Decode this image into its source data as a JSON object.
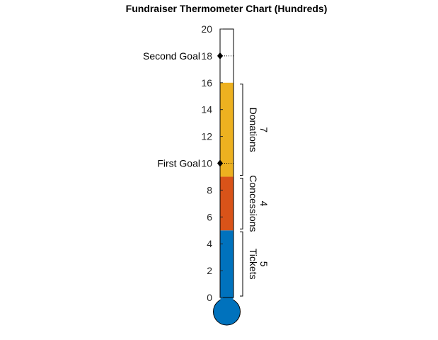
{
  "chart_data": {
    "type": "bar",
    "title": "Fundraiser Thermometer Chart (Hundreds)",
    "ylim": [
      0,
      20
    ],
    "yticks": [
      "0",
      "2",
      "4",
      "6",
      "8",
      "10",
      "12",
      "14",
      "16",
      "18",
      "20"
    ],
    "series": [
      {
        "name": "Tickets",
        "value": 5,
        "value_label": "5",
        "color": "#0072BD"
      },
      {
        "name": "Concessions",
        "value": 4,
        "value_label": "4",
        "color": "#D95319"
      },
      {
        "name": "Donations",
        "value": 7,
        "value_label": "7",
        "color": "#EDB120"
      }
    ],
    "goals": [
      {
        "label": "First Goal",
        "value": 10
      },
      {
        "label": "Second Goal",
        "value": 18
      }
    ],
    "bulb_color": "#0072BD"
  }
}
